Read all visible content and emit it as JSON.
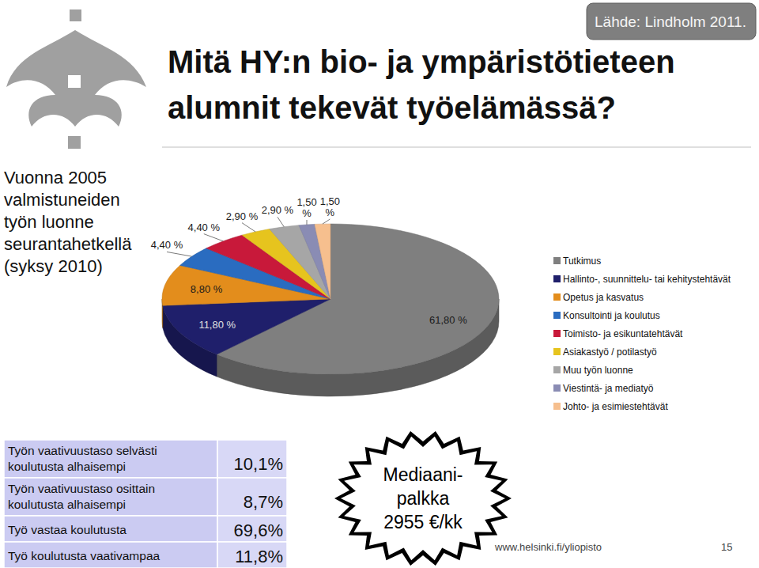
{
  "chart_data": {
    "type": "pie",
    "categories": [
      "Tutkimus",
      "Hallinto-, suunnittelu- tai kehitystehtävät",
      "Opetus ja kasvatus",
      "Konsultointi ja koulutus",
      "Toimisto- ja esikuntatehtävät",
      "Asiakastyö / potilastyö",
      "Muu työn luonne",
      "Viestintä- ja mediatyö",
      "Johto- ja esimiestehtävät"
    ],
    "values": [
      61.8,
      11.8,
      8.8,
      4.4,
      4.4,
      2.9,
      2.9,
      1.5,
      1.5
    ],
    "value_labels": [
      "61,80 %",
      "11,80 %",
      "8,80 %",
      "4,40 %",
      "4,40 %",
      "2,90 %",
      "2,90 %",
      "1,50 %",
      "1,50 %"
    ],
    "colors": [
      "#7f7f7f",
      "#1f1f6b",
      "#e38d1c",
      "#2a6cc0",
      "#c8193a",
      "#e6c41e",
      "#a6a6a6",
      "#8a8cb4",
      "#f6bf8e"
    ],
    "data_labels": true,
    "legend": "right"
  },
  "slide": {
    "title": [
      "Mitä HY:n bio- ja ympäristötieteen",
      "alumnit tekevät työelämässä?"
    ],
    "subtitle": [
      "Vuonna 2005",
      "valmistuneiden",
      "työn luonne",
      "seurantahetkellä",
      "(syksy 2010)"
    ],
    "source": "Lähde: Lindholm 2011.",
    "table": {
      "rows": [
        {
          "label": [
            "Työn vaativuustaso selvästi",
            "koulutusta alhaisempi"
          ],
          "value": "10,1%"
        },
        {
          "label": [
            "Työn vaativuustaso osittain",
            "koulutusta alhaisempi"
          ],
          "value": "8,7%"
        },
        {
          "label": [
            "Työ vastaa koulutusta"
          ],
          "value": "69,6%"
        },
        {
          "label": [
            "Työ koulutusta vaativampaa"
          ],
          "value": "11,8%"
        }
      ]
    },
    "salary": [
      "Mediaani-",
      "palkka",
      "2955 €/kk"
    ],
    "footer": {
      "url": "www.helsinki.fi/yliopisto",
      "page": "15"
    }
  }
}
